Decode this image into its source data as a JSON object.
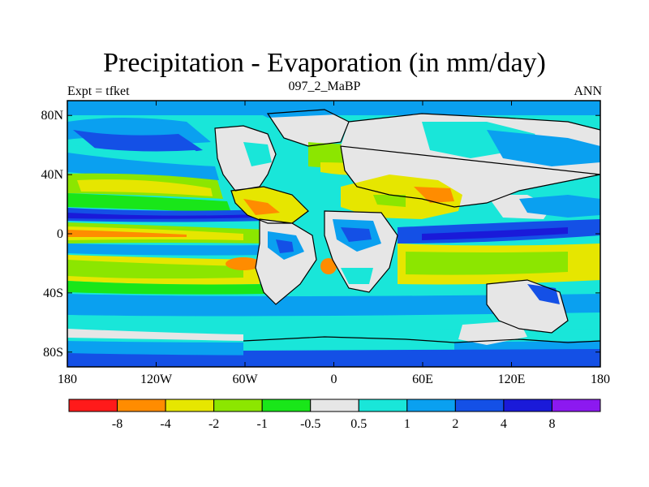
{
  "title": "Precipitation - Evaporation (in mm/day)",
  "subtitle_left": "Expt = tfket",
  "subtitle_center": "097_2_MaBP",
  "subtitle_right": "ANN",
  "lat_labels": [
    "80N",
    "40N",
    "0",
    "40S",
    "80S"
  ],
  "lat_values": [
    80,
    40,
    0,
    -40,
    -80
  ],
  "lon_labels": [
    "180",
    "120W",
    "60W",
    "0",
    "60E",
    "120E",
    "180"
  ],
  "lon_values": [
    -180,
    -120,
    -60,
    0,
    60,
    120,
    180
  ],
  "lon_range": [
    -180,
    180
  ],
  "lat_range": [
    -90,
    90
  ],
  "colorbar": {
    "colors": [
      "#ff1a1a",
      "#ff8c00",
      "#e6e600",
      "#8ce600",
      "#19e619",
      "#e6e6e6",
      "#19e6d9",
      "#0aa0f0",
      "#1450e6",
      "#1a1ad9",
      "#8c19f0"
    ],
    "labels": [
      "-8",
      "-4",
      "-2",
      "-1",
      "-0.5",
      "0.5",
      "1",
      "2",
      "4",
      "8"
    ]
  }
}
